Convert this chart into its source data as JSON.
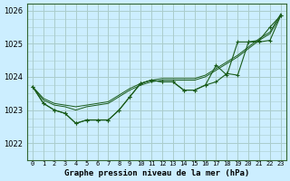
{
  "title": "Graphe pression niveau de la mer (hPa)",
  "background_color": "#cceeff",
  "grid_color": "#aacccc",
  "line_color": "#1a5c1a",
  "x_labels": [
    "0",
    "1",
    "2",
    "3",
    "4",
    "5",
    "6",
    "7",
    "8",
    "9",
    "10",
    "11",
    "12",
    "13",
    "14",
    "15",
    "16",
    "17",
    "18",
    "19",
    "20",
    "21",
    "22",
    "23"
  ],
  "ylim": [
    1021.5,
    1026.2
  ],
  "yticks": [
    1022,
    1023,
    1024,
    1025,
    1026
  ],
  "series_main": [
    1023.7,
    1023.2,
    1023.0,
    1022.9,
    1022.6,
    1022.7,
    1022.7,
    1022.7,
    1023.0,
    1023.4,
    1023.8,
    1023.9,
    1023.85,
    1023.85,
    1023.6,
    1023.6,
    1023.75,
    1023.85,
    1024.1,
    1024.05,
    1025.05,
    1025.05,
    1025.1,
    1025.85
  ],
  "series_line2": [
    1023.7,
    1023.2,
    1023.0,
    1022.9,
    1022.6,
    1022.7,
    1022.7,
    1022.7,
    1023.0,
    1023.4,
    1023.8,
    1023.9,
    1023.85,
    1023.85,
    1023.6,
    1023.6,
    1023.75,
    1024.35,
    1024.05,
    1025.05,
    1025.05,
    1025.1,
    1025.5,
    1025.85
  ],
  "series_smooth1": [
    1023.7,
    1023.3,
    1023.15,
    1023.1,
    1023.0,
    1023.1,
    1023.15,
    1023.2,
    1023.4,
    1023.6,
    1023.75,
    1023.85,
    1023.9,
    1023.9,
    1023.9,
    1023.9,
    1024.0,
    1024.2,
    1024.4,
    1024.6,
    1024.85,
    1025.1,
    1025.3,
    1025.85
  ],
  "series_smooth2": [
    1023.7,
    1023.35,
    1023.2,
    1023.15,
    1023.1,
    1023.15,
    1023.2,
    1023.25,
    1023.45,
    1023.65,
    1023.8,
    1023.9,
    1023.95,
    1023.95,
    1023.95,
    1023.95,
    1024.05,
    1024.25,
    1024.45,
    1024.65,
    1024.9,
    1025.15,
    1025.35,
    1025.9
  ]
}
